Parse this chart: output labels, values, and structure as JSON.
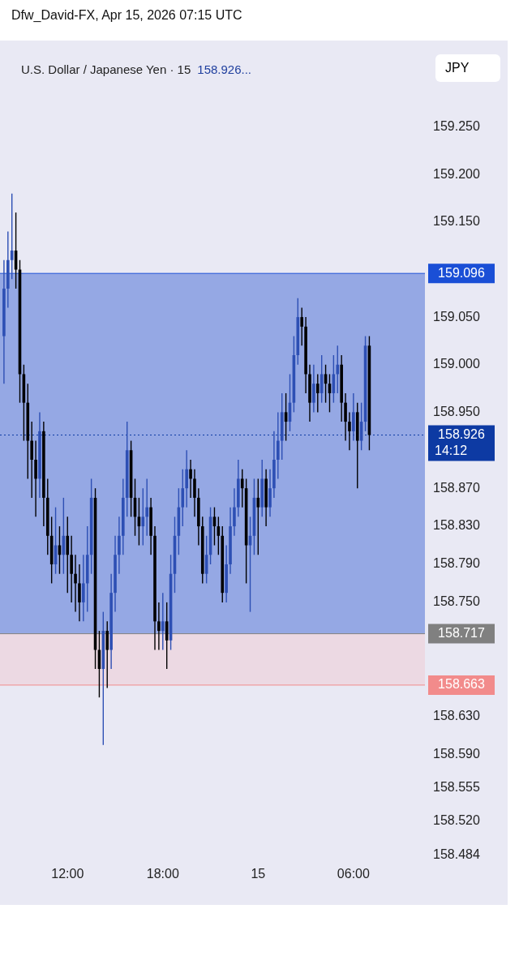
{
  "chart_data": {
    "type": "candlestick",
    "title": "U.S. Dollar / Japanese Yen · 15",
    "subtitle": "158.926...",
    "ylabel": "JPY",
    "annotations": [
      "Dfw_David-FX, Apr 15, 2026 07:15 UTC",
      "14:12"
    ],
    "x": [
      "2026-04-14T08:00",
      "2026-04-14T08:15",
      "2026-04-14T08:30",
      "2026-04-14T08:45",
      "2026-04-14T09:00",
      "2026-04-14T09:15",
      "2026-04-14T09:30",
      "2026-04-14T09:45",
      "2026-04-14T10:00",
      "2026-04-14T10:15",
      "2026-04-14T10:30",
      "2026-04-14T10:45",
      "2026-04-14T11:00",
      "2026-04-14T11:15",
      "2026-04-14T11:30",
      "2026-04-14T11:45",
      "2026-04-14T12:00",
      "2026-04-14T12:15",
      "2026-04-14T12:30",
      "2026-04-14T12:45",
      "2026-04-14T13:00",
      "2026-04-14T13:15",
      "2026-04-14T13:30",
      "2026-04-14T13:45",
      "2026-04-14T14:00",
      "2026-04-14T14:15",
      "2026-04-14T14:30",
      "2026-04-14T14:45",
      "2026-04-14T15:00",
      "2026-04-14T15:15",
      "2026-04-14T15:30",
      "2026-04-14T15:45",
      "2026-04-14T16:00",
      "2026-04-14T16:15",
      "2026-04-14T16:30",
      "2026-04-14T16:45",
      "2026-04-14T17:00",
      "2026-04-14T17:15",
      "2026-04-14T17:30",
      "2026-04-14T17:45",
      "2026-04-14T18:00",
      "2026-04-14T18:15",
      "2026-04-14T18:30",
      "2026-04-14T18:45",
      "2026-04-14T19:00",
      "2026-04-14T19:15",
      "2026-04-14T19:30",
      "2026-04-14T19:45",
      "2026-04-14T20:00",
      "2026-04-14T20:15",
      "2026-04-14T20:30",
      "2026-04-14T20:45",
      "2026-04-14T21:00",
      "2026-04-14T21:15",
      "2026-04-14T21:30",
      "2026-04-14T21:45",
      "2026-04-14T22:00",
      "2026-04-14T22:15",
      "2026-04-14T22:30",
      "2026-04-14T22:45",
      "2026-04-14T23:00",
      "2026-04-14T23:15",
      "2026-04-14T23:30",
      "2026-04-14T23:45",
      "2026-04-15T00:00",
      "2026-04-15T00:15",
      "2026-04-15T00:30",
      "2026-04-15T00:45",
      "2026-04-15T01:00",
      "2026-04-15T01:15",
      "2026-04-15T01:30",
      "2026-04-15T01:45",
      "2026-04-15T02:00",
      "2026-04-15T02:15",
      "2026-04-15T02:30",
      "2026-04-15T02:45",
      "2026-04-15T03:00",
      "2026-04-15T03:15",
      "2026-04-15T03:30",
      "2026-04-15T03:45",
      "2026-04-15T04:00",
      "2026-04-15T04:15",
      "2026-04-15T04:30",
      "2026-04-15T04:45",
      "2026-04-15T05:00",
      "2026-04-15T05:15",
      "2026-04-15T05:30",
      "2026-04-15T05:45",
      "2026-04-15T06:00",
      "2026-04-15T06:15",
      "2026-04-15T06:30",
      "2026-04-15T06:45",
      "2026-04-15T07:00"
    ],
    "ohlc": [
      [
        159.03,
        159.11,
        158.98,
        159.08
      ],
      [
        159.08,
        159.14,
        159.06,
        159.11
      ],
      [
        159.11,
        159.18,
        159.09,
        159.12
      ],
      [
        159.12,
        159.16,
        159.08,
        159.1
      ],
      [
        159.1,
        159.11,
        158.96,
        158.99
      ],
      [
        158.99,
        159.0,
        158.92,
        158.96
      ],
      [
        158.96,
        158.98,
        158.88,
        158.92
      ],
      [
        158.92,
        158.94,
        158.86,
        158.9
      ],
      [
        158.9,
        158.92,
        158.84,
        158.88
      ],
      [
        158.88,
        158.95,
        158.86,
        158.93
      ],
      [
        158.93,
        158.94,
        158.83,
        158.86
      ],
      [
        158.86,
        158.88,
        158.8,
        158.82
      ],
      [
        158.82,
        158.84,
        158.77,
        158.79
      ],
      [
        158.79,
        158.85,
        158.78,
        158.81
      ],
      [
        158.81,
        158.83,
        158.78,
        158.8
      ],
      [
        158.8,
        158.86,
        158.78,
        158.82
      ],
      [
        158.82,
        158.84,
        158.76,
        158.8
      ],
      [
        158.8,
        158.82,
        158.75,
        158.78
      ],
      [
        158.78,
        158.8,
        158.74,
        158.77
      ],
      [
        158.77,
        158.79,
        158.73,
        158.75
      ],
      [
        158.75,
        158.8,
        158.73,
        158.77
      ],
      [
        158.77,
        158.83,
        158.74,
        158.8
      ],
      [
        158.8,
        158.88,
        158.78,
        158.86
      ],
      [
        158.86,
        158.87,
        158.68,
        158.7
      ],
      [
        158.7,
        158.72,
        158.65,
        158.68
      ],
      [
        158.68,
        158.74,
        158.6,
        158.72
      ],
      [
        158.72,
        158.73,
        158.66,
        158.7
      ],
      [
        158.7,
        158.78,
        158.68,
        158.76
      ],
      [
        158.76,
        158.82,
        158.74,
        158.8
      ],
      [
        158.8,
        158.84,
        158.78,
        158.82
      ],
      [
        158.82,
        158.88,
        158.8,
        158.86
      ],
      [
        158.86,
        158.94,
        158.84,
        158.91
      ],
      [
        158.91,
        158.92,
        158.84,
        158.86
      ],
      [
        158.86,
        158.88,
        158.82,
        158.84
      ],
      [
        158.84,
        158.86,
        158.81,
        158.83
      ],
      [
        158.83,
        158.87,
        158.81,
        158.84
      ],
      [
        158.84,
        158.88,
        158.82,
        158.85
      ],
      [
        158.85,
        158.86,
        158.8,
        158.82
      ],
      [
        158.82,
        158.83,
        158.7,
        158.73
      ],
      [
        158.73,
        158.75,
        158.7,
        158.72
      ],
      [
        158.72,
        158.76,
        158.7,
        158.73
      ],
      [
        158.73,
        158.75,
        158.68,
        158.71
      ],
      [
        158.71,
        158.8,
        158.7,
        158.78
      ],
      [
        158.78,
        158.84,
        158.76,
        158.82
      ],
      [
        158.82,
        158.87,
        158.8,
        158.85
      ],
      [
        158.85,
        158.89,
        158.83,
        158.87
      ],
      [
        158.87,
        158.91,
        158.85,
        158.89
      ],
      [
        158.89,
        158.9,
        158.86,
        158.88
      ],
      [
        158.88,
        158.89,
        158.84,
        158.86
      ],
      [
        158.86,
        158.87,
        158.81,
        158.83
      ],
      [
        158.83,
        158.84,
        158.77,
        158.78
      ],
      [
        158.78,
        158.82,
        158.77,
        158.8
      ],
      [
        158.8,
        158.85,
        158.79,
        158.84
      ],
      [
        158.84,
        158.85,
        158.81,
        158.83
      ],
      [
        158.83,
        158.84,
        158.8,
        158.82
      ],
      [
        158.82,
        158.83,
        158.75,
        158.76
      ],
      [
        158.76,
        158.81,
        158.75,
        158.79
      ],
      [
        158.79,
        158.85,
        158.78,
        158.83
      ],
      [
        158.83,
        158.87,
        158.82,
        158.85
      ],
      [
        158.85,
        158.9,
        158.84,
        158.88
      ],
      [
        158.88,
        158.89,
        158.85,
        158.87
      ],
      [
        158.87,
        158.88,
        158.77,
        158.81
      ],
      [
        158.81,
        158.84,
        158.74,
        158.82
      ],
      [
        158.82,
        158.88,
        158.8,
        158.86
      ],
      [
        158.86,
        158.88,
        158.8,
        158.85
      ],
      [
        158.85,
        158.9,
        158.84,
        158.88
      ],
      [
        158.88,
        158.89,
        158.83,
        158.85
      ],
      [
        158.85,
        158.89,
        158.84,
        158.87
      ],
      [
        158.87,
        158.93,
        158.86,
        158.9
      ],
      [
        158.9,
        158.95,
        158.88,
        158.92
      ],
      [
        158.92,
        158.97,
        158.9,
        158.95
      ],
      [
        158.95,
        158.97,
        158.92,
        158.94
      ],
      [
        158.94,
        158.99,
        158.93,
        158.96
      ],
      [
        158.96,
        159.03,
        158.95,
        159.01
      ],
      [
        159.01,
        159.07,
        159.0,
        159.05
      ],
      [
        159.05,
        159.06,
        159.02,
        159.04
      ],
      [
        159.04,
        159.05,
        158.97,
        158.99
      ],
      [
        158.99,
        159.0,
        158.94,
        158.96
      ],
      [
        158.96,
        159.0,
        158.95,
        158.98
      ],
      [
        158.98,
        158.99,
        158.95,
        158.97
      ],
      [
        158.97,
        159.01,
        158.96,
        158.99
      ],
      [
        158.99,
        159.0,
        158.96,
        158.98
      ],
      [
        158.98,
        158.99,
        158.95,
        158.97
      ],
      [
        158.97,
        159.01,
        158.96,
        158.99
      ],
      [
        158.99,
        159.02,
        158.97,
        159.0
      ],
      [
        159.0,
        159.01,
        158.94,
        158.96
      ],
      [
        158.96,
        158.97,
        158.92,
        158.94
      ],
      [
        158.94,
        158.95,
        158.91,
        158.93
      ],
      [
        158.93,
        158.97,
        158.92,
        158.95
      ],
      [
        158.95,
        158.96,
        158.87,
        158.92
      ],
      [
        158.92,
        158.96,
        158.91,
        158.94
      ],
      [
        158.94,
        159.03,
        158.93,
        159.02
      ],
      [
        159.02,
        159.03,
        158.91,
        158.926
      ]
    ],
    "colors": [
      "#2d4fb4",
      "#2d4fb4",
      "#2d4fb4",
      "#000000",
      "#000000",
      "#000000",
      "#000000",
      "#000000",
      "#000000",
      "#2d4fb4",
      "#000000",
      "#000000",
      "#000000",
      "#2d4fb4",
      "#000000",
      "#2d4fb4",
      "#000000",
      "#000000",
      "#000000",
      "#000000",
      "#2d4fb4",
      "#2d4fb4",
      "#2d4fb4",
      "#000000",
      "#000000",
      "#2d4fb4",
      "#000000",
      "#2d4fb4",
      "#2d4fb4",
      "#2d4fb4",
      "#2d4fb4",
      "#2d4fb4",
      "#000000",
      "#000000",
      "#000000",
      "#2d4fb4",
      "#2d4fb4",
      "#000000",
      "#000000",
      "#000000",
      "#2d4fb4",
      "#000000",
      "#2d4fb4",
      "#2d4fb4",
      "#2d4fb4",
      "#2d4fb4",
      "#2d4fb4",
      "#000000",
      "#000000",
      "#000000",
      "#000000",
      "#2d4fb4",
      "#2d4fb4",
      "#000000",
      "#000000",
      "#000000",
      "#2d4fb4",
      "#2d4fb4",
      "#2d4fb4",
      "#2d4fb4",
      "#000000",
      "#000000",
      "#2d4fb4",
      "#2d4fb4",
      "#000000",
      "#2d4fb4",
      "#000000",
      "#2d4fb4",
      "#2d4fb4",
      "#2d4fb4",
      "#2d4fb4",
      "#000000",
      "#2d4fb4",
      "#2d4fb4",
      "#2d4fb4",
      "#000000",
      "#000000",
      "#000000",
      "#2d4fb4",
      "#000000",
      "#2d4fb4",
      "#000000",
      "#000000",
      "#2d4fb4",
      "#2d4fb4",
      "#000000",
      "#000000",
      "#000000",
      "#2d4fb4",
      "#000000",
      "#2d4fb4",
      "#2d4fb4",
      "#000000"
    ],
    "xlim": [
      "2026-04-14T07:45",
      "2026-04-15T10:30"
    ],
    "xticks": [
      {
        "value": "2026-04-14T12:00",
        "label": "12:00"
      },
      {
        "value": "2026-04-14T18:00",
        "label": "18:00"
      },
      {
        "value": "2026-04-15T00:00",
        "label": "15"
      },
      {
        "value": "2026-04-15T06:00",
        "label": "06:00"
      }
    ],
    "ylim": [
      158.484,
      159.25
    ],
    "yticks": [
      {
        "value": 158.484,
        "label": "158.484"
      },
      {
        "value": 158.52,
        "label": "158.520"
      },
      {
        "value": 158.555,
        "label": "158.555"
      },
      {
        "value": 158.59,
        "label": "158.590"
      },
      {
        "value": 158.63,
        "label": "158.630"
      },
      {
        "value": 158.75,
        "label": "158.750"
      },
      {
        "value": 158.79,
        "label": "158.790"
      },
      {
        "value": 158.83,
        "label": "158.830"
      },
      {
        "value": 158.87,
        "label": "158.870"
      },
      {
        "value": 158.95,
        "label": "158.950"
      },
      {
        "value": 159.0,
        "label": "159.000"
      },
      {
        "value": 159.05,
        "label": "159.050"
      },
      {
        "value": 159.15,
        "label": "159.150"
      },
      {
        "value": 159.2,
        "label": "159.200"
      },
      {
        "value": 159.25,
        "label": "159.250"
      }
    ],
    "bands": [
      {
        "axis": "y",
        "from": 158.717,
        "to": 159.096,
        "color": "#7f97e0"
      },
      {
        "axis": "y",
        "from": 158.663,
        "to": 158.717,
        "color": "#ecd4de"
      }
    ],
    "ref_lines": [
      {
        "axis": "y",
        "value": 159.096,
        "label": "159.096",
        "color": "#1a4fd6",
        "line_style": "solid"
      },
      {
        "axis": "y",
        "value": 158.926,
        "label": "158.926",
        "color": "#0d3aa3",
        "line_style": "dotted"
      },
      {
        "axis": "y",
        "value": 158.717,
        "label": "158.717",
        "color": "#808080",
        "line_style": "solid"
      },
      {
        "axis": "y",
        "value": 158.663,
        "label": "158.663",
        "color": "#f28b8b",
        "line_style": "solid"
      }
    ],
    "grid": false,
    "legend": false
  }
}
